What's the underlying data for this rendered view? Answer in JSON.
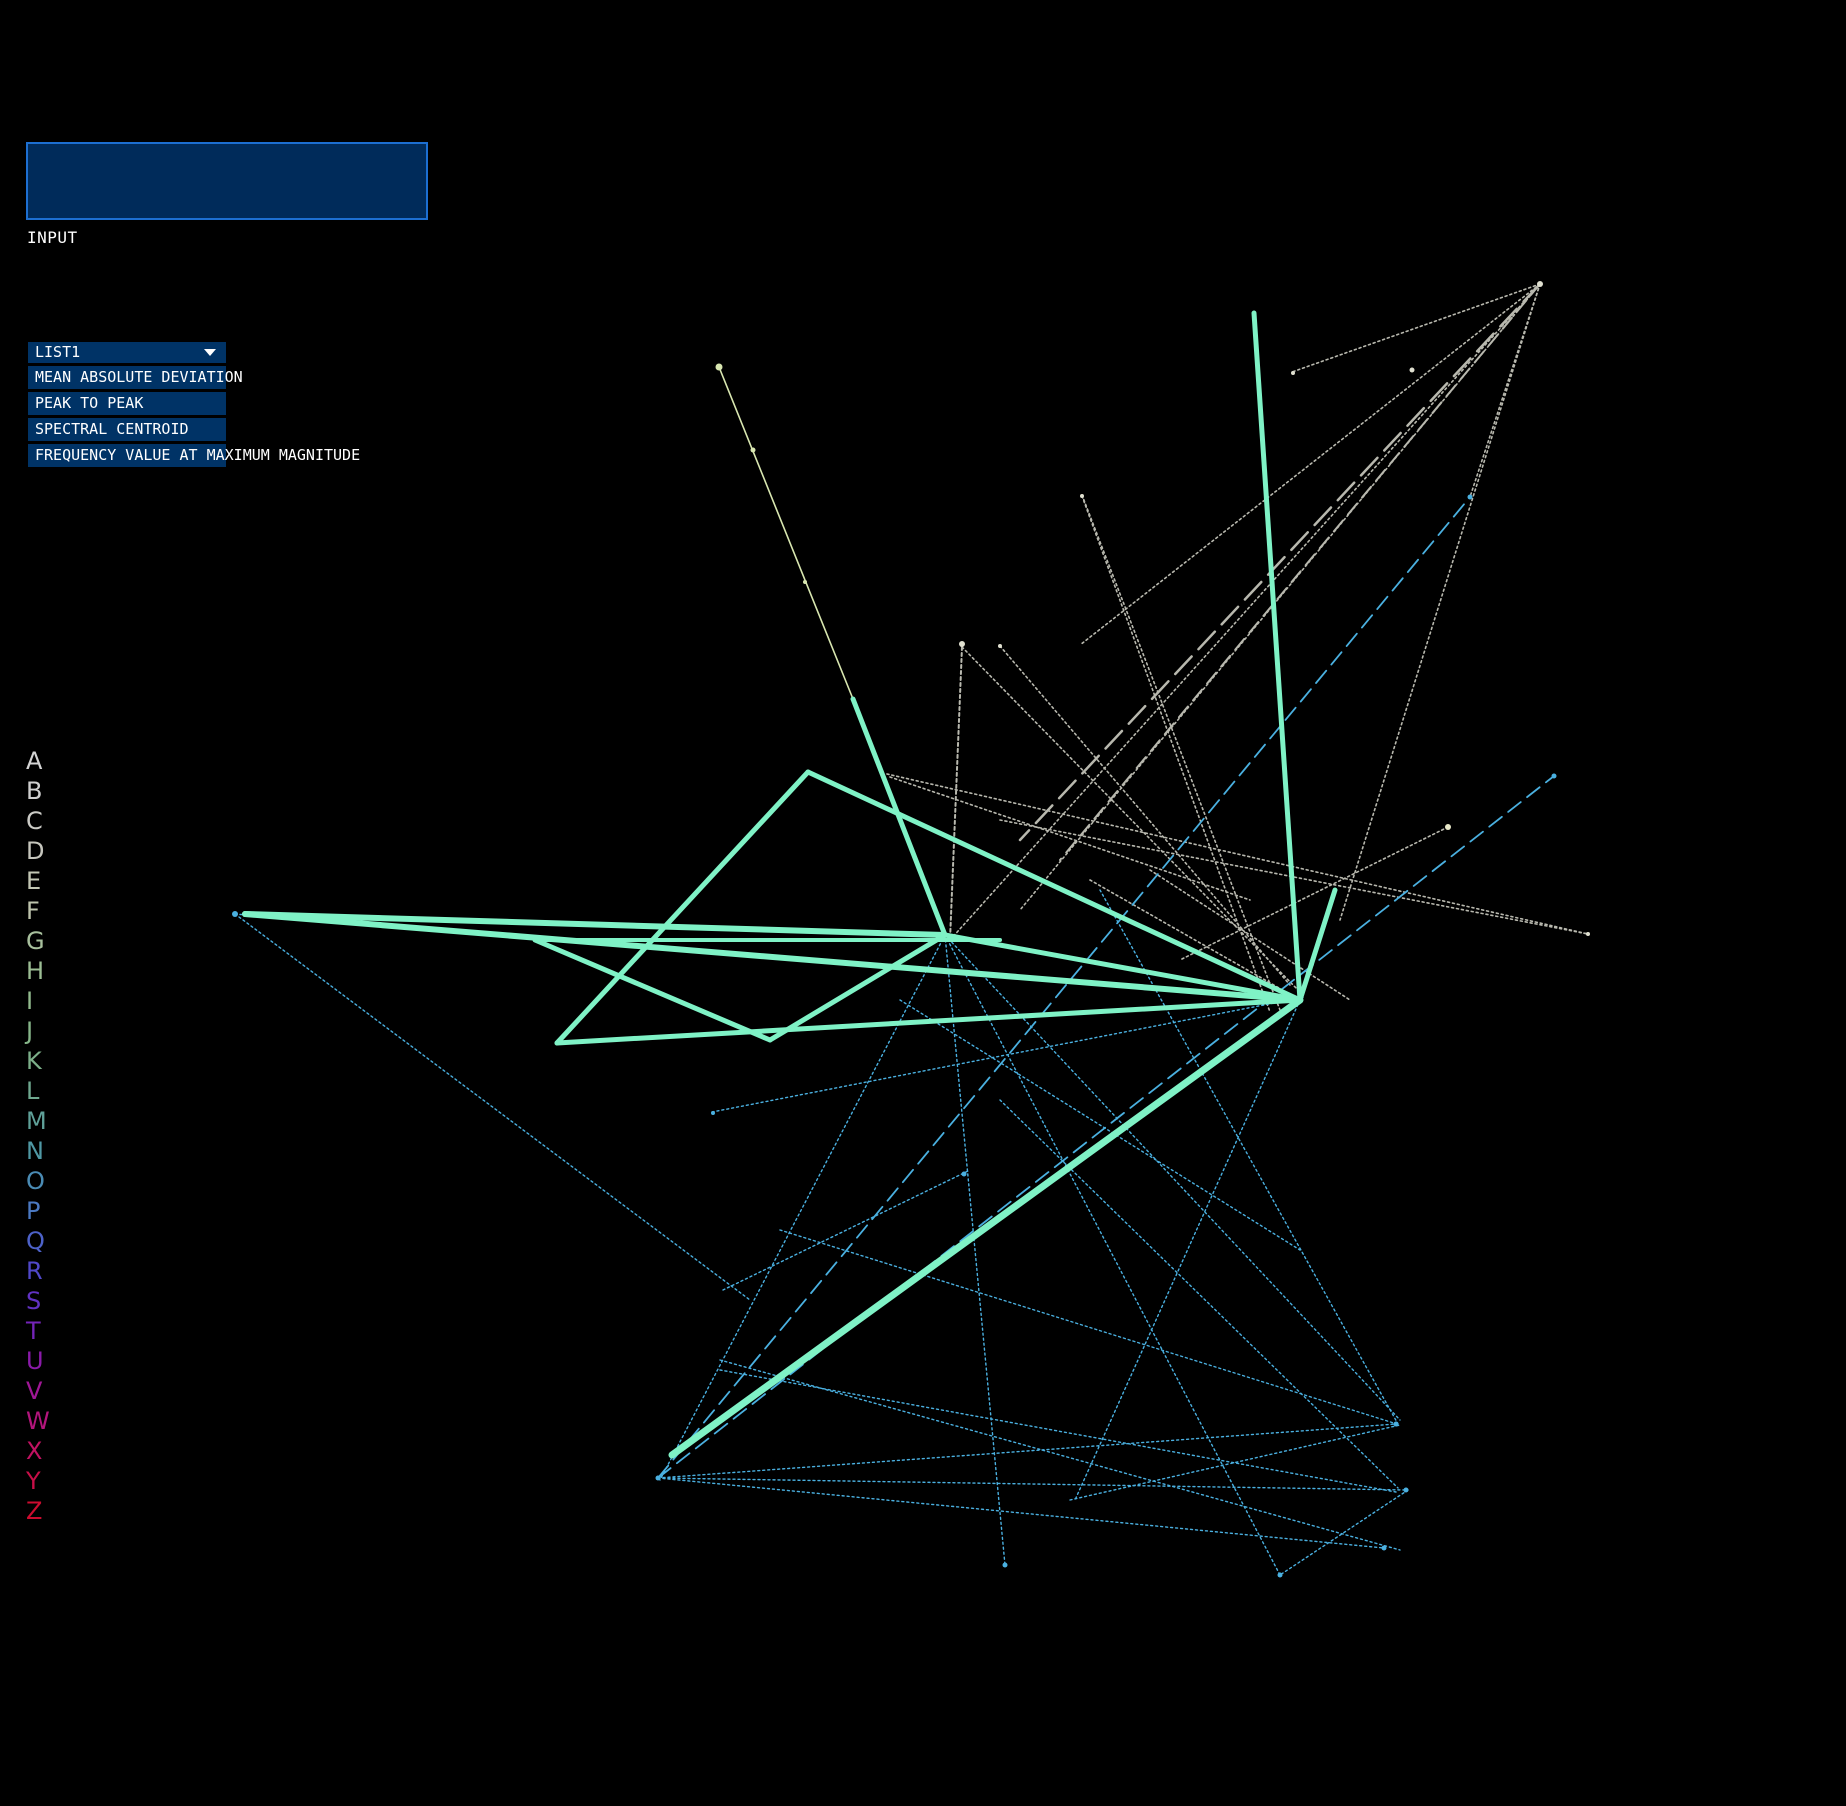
{
  "input": {
    "label": "INPUT",
    "value": ""
  },
  "dropdown": {
    "selected": "LIST1",
    "items": [
      {
        "label": "MEAN ABSOLUTE DEVIATION"
      },
      {
        "label": "PEAK TO PEAK"
      },
      {
        "label": "SPECTRAL CENTROID"
      },
      {
        "label": "FREQUENCY VALUE AT MAXIMUM MAGNITUDE"
      }
    ]
  },
  "letters": [
    {
      "char": "A",
      "color": "#d4d4d4"
    },
    {
      "char": "B",
      "color": "#cfcfcf"
    },
    {
      "char": "C",
      "color": "#cbcbc6"
    },
    {
      "char": "D",
      "color": "#c6c6bd"
    },
    {
      "char": "E",
      "color": "#c2c6b4"
    },
    {
      "char": "F",
      "color": "#bec4ad"
    },
    {
      "char": "G",
      "color": "#a8c09d"
    },
    {
      "char": "H",
      "color": "#9cbe94"
    },
    {
      "char": "I",
      "color": "#92bb8e"
    },
    {
      "char": "J",
      "color": "#86b689"
    },
    {
      "char": "K",
      "color": "#7caf89"
    },
    {
      "char": "L",
      "color": "#6fa88f"
    },
    {
      "char": "M",
      "color": "#5fa199"
    },
    {
      "char": "N",
      "color": "#4f98a4"
    },
    {
      "char": "O",
      "color": "#4a8bb4"
    },
    {
      "char": "P",
      "color": "#4b79c2"
    },
    {
      "char": "Q",
      "color": "#4d62c9"
    },
    {
      "char": "R",
      "color": "#5048c9"
    },
    {
      "char": "S",
      "color": "#6132c3"
    },
    {
      "char": "T",
      "color": "#7424b8"
    },
    {
      "char": "U",
      "color": "#8a1aa9"
    },
    {
      "char": "V",
      "color": "#a01796"
    },
    {
      "char": "W",
      "color": "#b3157c"
    },
    {
      "char": "X",
      "color": "#c11262"
    },
    {
      "char": "Y",
      "color": "#c80f48"
    },
    {
      "char": "Z",
      "color": "#cc0c2f"
    }
  ],
  "colors": {
    "background": "#000000",
    "thick": "#7ff2c6",
    "grey": "#b8b8ae",
    "blue": "#4ab0e0",
    "pale": "#d8e6b0"
  }
}
